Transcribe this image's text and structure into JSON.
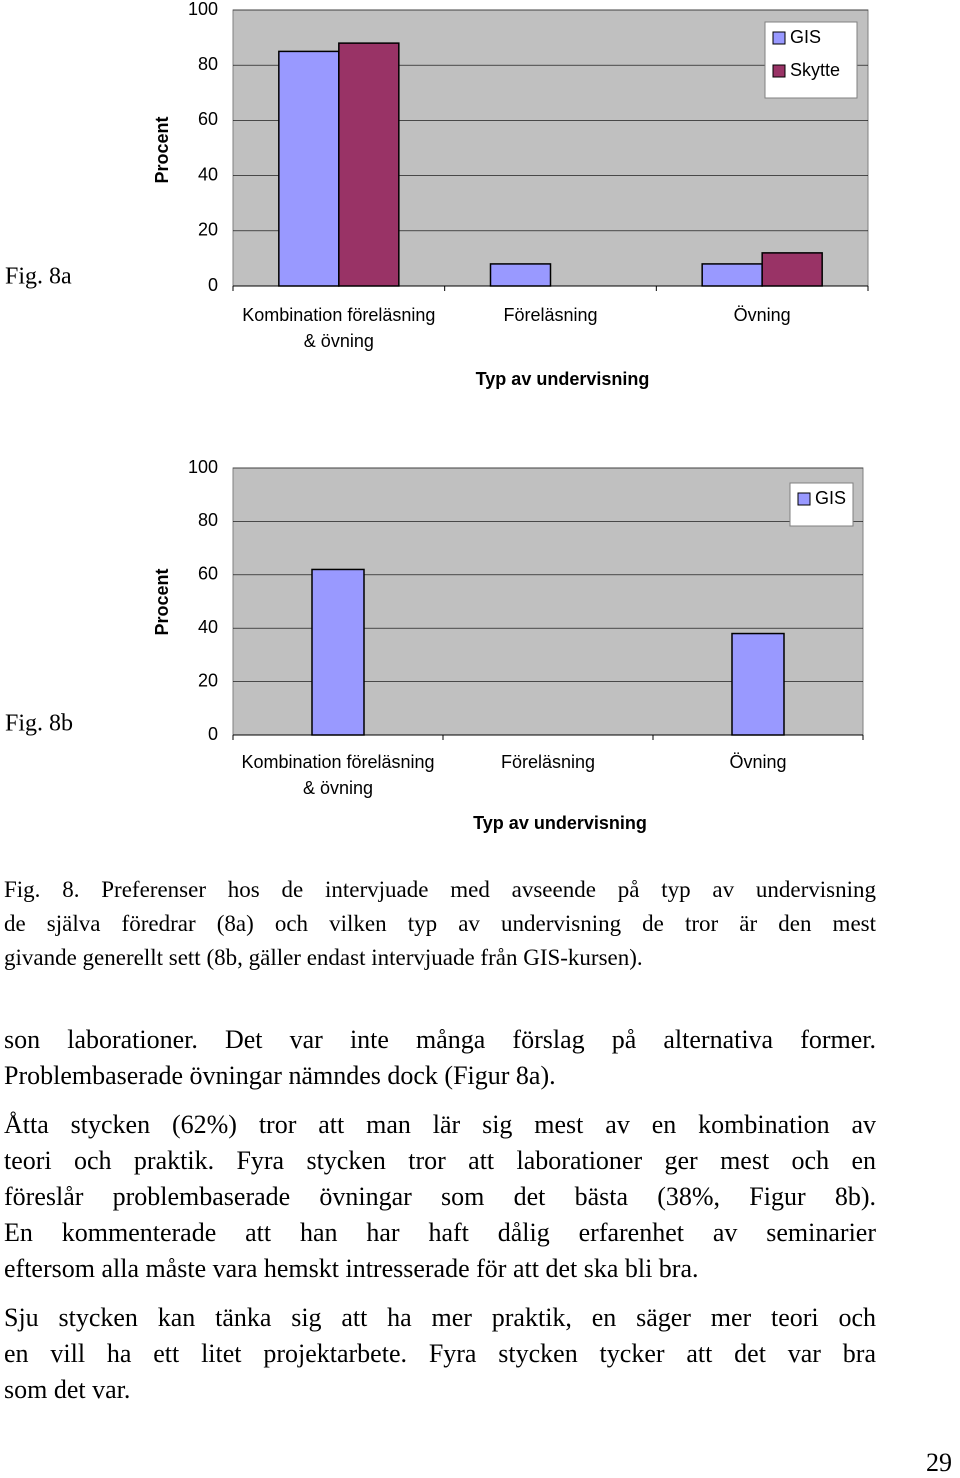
{
  "figure_labels": [
    "Fig. 8a",
    "Fig. 8b"
  ],
  "chart_data": [
    {
      "type": "bar",
      "y_label": "Procent",
      "x_label": "Typ av undervisning",
      "categories": [
        "Kombination föreläsning & övning",
        "Föreläsning",
        "Övning"
      ],
      "series": [
        {
          "name": "GIS",
          "color": "#9999ff",
          "values": [
            85,
            8,
            8
          ]
        },
        {
          "name": "Skytte",
          "color": "#993366",
          "values": [
            88,
            0,
            12
          ]
        }
      ],
      "ylim": [
        0,
        100
      ],
      "yticks": [
        0,
        20,
        40,
        60,
        80,
        100
      ],
      "grid": true,
      "legend": "top-right",
      "plot_background": "#c0c0c0"
    },
    {
      "type": "bar",
      "y_label": "Procent",
      "x_label": "Typ av undervisning",
      "categories": [
        "Kombination föreläsning & övning",
        "Föreläsning",
        "Övning"
      ],
      "series": [
        {
          "name": "GIS",
          "color": "#9999ff",
          "values": [
            62,
            0,
            38
          ]
        }
      ],
      "ylim": [
        0,
        100
      ],
      "yticks": [
        0,
        20,
        40,
        60,
        80,
        100
      ],
      "grid": true,
      "legend": "top-right",
      "plot_background": "#c0c0c0"
    }
  ],
  "caption": [
    "Fig. 8. Preferenser hos de intervjuade med avseende på typ av undervisning",
    "de själva föredrar (8a) och vilken typ av undervisning de tror är den mest",
    "givande generellt sett (8b, gäller endast intervjuade från GIS-kursen)."
  ],
  "paragraphs": [
    [
      "son laborationer. Det var inte många förslag på alternativa former.",
      "Problembaserade övningar nämndes dock (Figur 8a)."
    ],
    [
      "Åtta stycken (62%) tror att man lär sig mest av en kombination av",
      "teori och praktik. Fyra stycken tror att laborationer ger mest och en",
      "föreslår problembaserade övningar som det bästa (38%, Figur 8b).",
      "En kommenterade att han har haft dålig erfarenhet av seminarier",
      "eftersom alla måste vara hemskt intresserade för att det ska bli bra."
    ],
    [
      "Sju stycken kan tänka sig att ha mer praktik, en säger mer teori och",
      "en vill ha ett litet projektarbete. Fyra stycken tycker att det var bra",
      "som det var."
    ]
  ],
  "page_number": "29"
}
